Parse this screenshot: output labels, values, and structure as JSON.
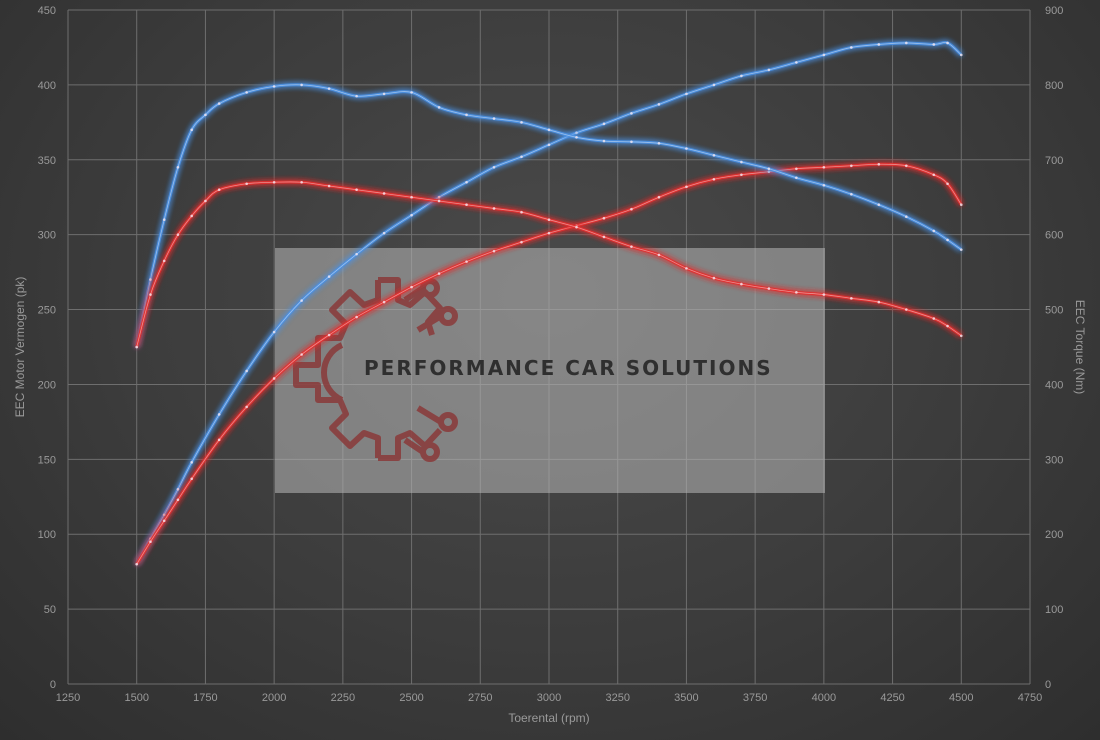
{
  "chart_data": {
    "type": "line",
    "title": "",
    "xlabel": "Toerental (rpm)",
    "ylabel_left": "EEC Motor Vermogen (pk)",
    "ylabel_right": "EEC Torque (Nm)",
    "xlim": [
      1250,
      4750
    ],
    "ylim_left": [
      0,
      450
    ],
    "ylim_right": [
      0,
      900
    ],
    "x_ticks": [
      1250,
      1500,
      1750,
      2000,
      2250,
      2500,
      2750,
      3000,
      3250,
      3500,
      3750,
      4000,
      4250,
      4500,
      4750
    ],
    "y_ticks_left": [
      0,
      50,
      100,
      150,
      200,
      250,
      300,
      350,
      400,
      450
    ],
    "y_ticks_right": [
      0,
      100,
      200,
      300,
      400,
      500,
      600,
      700,
      800,
      900
    ],
    "grid": true,
    "series": [
      {
        "axis": "left",
        "color": "#4a90e2",
        "x": [
          1500,
          1550,
          1600,
          1650,
          1700,
          1800,
          1900,
          2000,
          2100,
          2200,
          2300,
          2400,
          2500,
          2600,
          2700,
          2800,
          2900,
          3000,
          3100,
          3200,
          3300,
          3400,
          3500,
          3600,
          3700,
          3800,
          3900,
          4000,
          4100,
          4200,
          4300,
          4400,
          4450,
          4500
        ],
        "values": [
          80,
          97,
          113,
          130,
          148,
          180,
          209,
          235,
          256,
          272,
          287,
          301,
          313,
          325,
          335,
          345,
          352,
          360,
          368,
          374,
          381,
          387,
          394,
          400,
          406,
          410,
          415,
          420,
          425,
          427,
          428,
          427,
          428,
          420
        ]
      },
      {
        "axis": "left",
        "color": "#e23030",
        "x": [
          1500,
          1550,
          1600,
          1650,
          1700,
          1800,
          1900,
          2000,
          2100,
          2200,
          2300,
          2400,
          2500,
          2600,
          2700,
          2800,
          2900,
          3000,
          3100,
          3200,
          3300,
          3400,
          3500,
          3600,
          3700,
          3800,
          3900,
          4000,
          4100,
          4200,
          4300,
          4400,
          4450,
          4500
        ],
        "values": [
          80,
          95,
          109,
          123,
          137,
          163,
          185,
          204,
          220,
          233,
          245,
          255,
          265,
          274,
          282,
          289,
          295,
          301,
          306,
          311,
          317,
          325,
          332,
          337,
          340,
          342,
          344,
          345,
          346,
          347,
          346,
          340,
          334,
          320
        ]
      },
      {
        "axis": "right",
        "color": "#4a90e2",
        "x": [
          1500,
          1550,
          1600,
          1650,
          1700,
          1750,
          1800,
          1900,
          2000,
          2100,
          2200,
          2300,
          2400,
          2500,
          2600,
          2700,
          2800,
          2900,
          3000,
          3100,
          3200,
          3300,
          3400,
          3500,
          3600,
          3700,
          3800,
          3900,
          4000,
          4100,
          4200,
          4300,
          4400,
          4450,
          4500
        ],
        "values": [
          450,
          540,
          620,
          690,
          740,
          760,
          775,
          790,
          798,
          800,
          795,
          785,
          788,
          790,
          770,
          760,
          755,
          750,
          740,
          730,
          725,
          724,
          722,
          715,
          706,
          697,
          688,
          676,
          666,
          654,
          640,
          624,
          605,
          593,
          580
        ]
      },
      {
        "axis": "right",
        "color": "#e23030",
        "x": [
          1500,
          1550,
          1600,
          1650,
          1700,
          1750,
          1800,
          1900,
          2000,
          2100,
          2200,
          2300,
          2400,
          2500,
          2600,
          2700,
          2800,
          2900,
          3000,
          3100,
          3200,
          3300,
          3400,
          3500,
          3600,
          3700,
          3800,
          3900,
          4000,
          4100,
          4200,
          4300,
          4400,
          4450,
          4500
        ],
        "values": [
          450,
          520,
          565,
          600,
          625,
          645,
          660,
          668,
          670,
          670,
          665,
          660,
          655,
          650,
          645,
          640,
          635,
          630,
          620,
          610,
          597,
          584,
          573,
          555,
          542,
          534,
          528,
          523,
          520,
          515,
          510,
          500,
          488,
          478,
          465
        ]
      }
    ]
  },
  "watermark": {
    "text": "PERFORMANCE CAR SOLUTIONS",
    "logo_color": "#8a3a3a"
  }
}
